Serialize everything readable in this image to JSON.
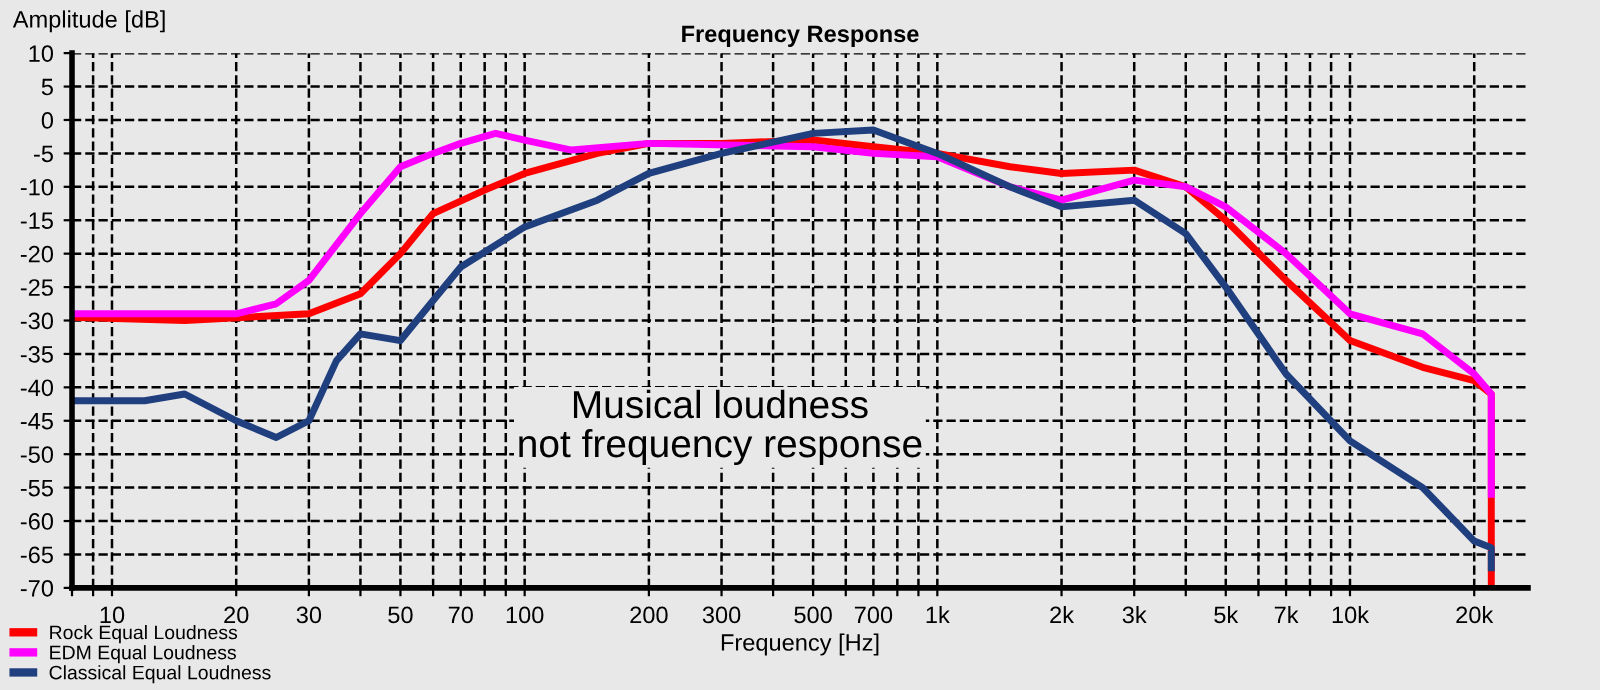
{
  "chart_data": {
    "type": "line",
    "title": "Frequency Response",
    "xlabel": "Frequency [Hz]",
    "ylabel": "Amplitude [dB]",
    "log": "x",
    "xlim": [
      8,
      27000
    ],
    "ylim": [
      -70,
      10
    ],
    "xticks": [
      {
        "value": 8,
        "label": null
      },
      {
        "value": 9,
        "label": null
      },
      10,
      20,
      30,
      {
        "value": 40,
        "label": null
      },
      50,
      {
        "value": 60,
        "label": null
      },
      70,
      {
        "value": 80,
        "label": null
      },
      {
        "value": 90,
        "label": null
      },
      100,
      200,
      300,
      {
        "value": 400,
        "label": null
      },
      500,
      {
        "value": 600,
        "label": null
      },
      700,
      {
        "value": 800,
        "label": null
      },
      {
        "value": 900,
        "label": null
      },
      {
        "value": 1000,
        "label": "1k"
      },
      {
        "value": 2000,
        "label": "2k"
      },
      {
        "value": 3000,
        "label": "3k"
      },
      {
        "value": 4000,
        "label": null
      },
      {
        "value": 5000,
        "label": "5k"
      },
      {
        "value": 6000,
        "label": null
      },
      {
        "value": 7000,
        "label": "7k"
      },
      {
        "value": 8000,
        "label": null
      },
      {
        "value": 9000,
        "label": null
      },
      {
        "value": 10000,
        "label": "10k"
      },
      {
        "value": 20000,
        "label": "20k"
      }
    ],
    "yticks": [
      -70,
      -65,
      -60,
      -55,
      -50,
      -45,
      -40,
      -35,
      -30,
      -25,
      -20,
      -15,
      -10,
      -5,
      0,
      5,
      10
    ],
    "grid": true,
    "legend": "bottom left",
    "line_style": "solid",
    "marker": "none",
    "annotations": [
      "Musical loudness\nnot frequency response"
    ],
    "series": [
      {
        "name": "Rock Equal Loudness",
        "color": "#ff0000",
        "x": [
          8,
          15,
          30,
          40,
          50,
          60,
          80,
          100,
          150,
          200,
          300,
          500,
          700,
          1000,
          1500,
          2000,
          3000,
          4000,
          5000,
          7000,
          10000,
          15000,
          20000,
          22000,
          22000
        ],
        "values": [
          -29.5,
          -30,
          -29,
          -26,
          -20,
          -14,
          -10.5,
          -8,
          -5,
          -3.5,
          -3.5,
          -3,
          -4,
          -5,
          -7,
          -8,
          -7.5,
          -10,
          -15,
          -24,
          -33,
          -37,
          -39,
          -41,
          -70
        ]
      },
      {
        "name": "EDM Equal Loudness",
        "color": "#ff00ff",
        "x": [
          8,
          20,
          25,
          30,
          40,
          50,
          60,
          70,
          85,
          100,
          130,
          200,
          500,
          700,
          1000,
          1500,
          2000,
          3000,
          4000,
          5000,
          7000,
          10000,
          15000,
          20000,
          22000,
          22000
        ],
        "values": [
          -29,
          -29,
          -27.5,
          -24,
          -14,
          -7,
          -5,
          -3.5,
          -2,
          -3,
          -4.5,
          -3.5,
          -4,
          -5,
          -5.5,
          -10,
          -12,
          -9,
          -10,
          -13,
          -20,
          -29,
          -32,
          -38,
          -41,
          -56
        ]
      },
      {
        "name": "Classical Equal Loudness",
        "color": "#1f3f7f",
        "x": [
          8,
          12,
          15,
          20,
          25,
          30,
          35,
          40,
          50,
          60,
          70,
          100,
          150,
          200,
          300,
          500,
          700,
          1000,
          1500,
          2000,
          3000,
          4000,
          5000,
          7000,
          10000,
          15000,
          20000,
          22000,
          22000
        ],
        "values": [
          -42,
          -42,
          -41,
          -45,
          -47.5,
          -45,
          -36,
          -32,
          -33,
          -27,
          -22,
          -16,
          -12,
          -8,
          -5,
          -2,
          -1.5,
          -5,
          -10,
          -13,
          -12,
          -17,
          -25,
          -38,
          -48,
          -55,
          -63,
          -64,
          -67
        ]
      }
    ]
  }
}
